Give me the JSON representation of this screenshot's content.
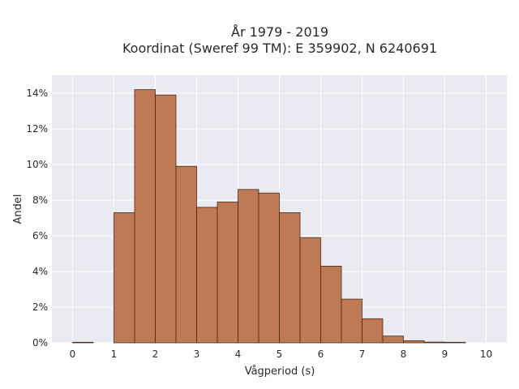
{
  "chart_data": {
    "type": "bar",
    "title_line1": "År 1979 - 2019",
    "title_line2": "Koordinat (Sweref 99 TM): E 359902, N 6240691",
    "xlabel": "Vågperiod (s)",
    "ylabel": "Andel",
    "xlim": [
      -0.5,
      10.5
    ],
    "ylim": [
      0,
      15
    ],
    "x_ticks": [
      0,
      1,
      2,
      3,
      4,
      5,
      6,
      7,
      8,
      9,
      10
    ],
    "y_ticks": [
      0,
      2,
      4,
      6,
      8,
      10,
      12,
      14
    ],
    "y_tick_labels": [
      "0%",
      "2%",
      "4%",
      "6%",
      "8%",
      "10%",
      "12%",
      "14%"
    ],
    "bin_width": 0.5,
    "bin_starts": [
      0,
      0.5,
      1,
      1.5,
      2,
      2.5,
      3,
      3.5,
      4,
      4.5,
      5,
      5.5,
      6,
      6.5,
      7,
      7.5,
      8,
      8.5,
      9,
      9.5
    ],
    "values": [
      0.03,
      0,
      7.3,
      14.2,
      13.9,
      9.9,
      7.6,
      7.9,
      8.6,
      8.4,
      7.3,
      5.9,
      4.3,
      2.45,
      1.35,
      0.38,
      0.12,
      0.04,
      0.03,
      0
    ],
    "grid": true,
    "colors": {
      "bar": "#bd7a55",
      "bar_edge": "#4a2a18",
      "plot_bg": "#eaeaf2",
      "grid": "#ffffff"
    }
  }
}
